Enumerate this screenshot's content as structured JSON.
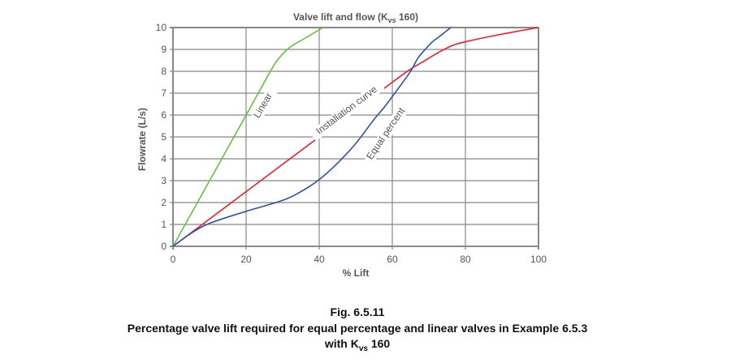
{
  "chart_data": {
    "type": "line",
    "title": "Valve lift and flow (K",
    "title_sub": "vs",
    "title_tail": " 160)",
    "xlabel": "% Lift",
    "ylabel": "Flowrate (L/s)",
    "xlim": [
      0,
      100
    ],
    "ylim": [
      0,
      10
    ],
    "xticks": [
      0,
      20,
      40,
      60,
      80,
      100
    ],
    "yticks": [
      0,
      1,
      2,
      3,
      4,
      5,
      6,
      7,
      8,
      9,
      10
    ],
    "grid": true,
    "series": [
      {
        "name": "Linear",
        "color": "#6abf3f",
        "x": [
          0,
          10,
          20,
          27,
          29,
          32,
          36,
          41
        ],
        "y": [
          0,
          3,
          6,
          8.1,
          8.6,
          9.1,
          9.5,
          10
        ]
      },
      {
        "name": "Installation curve",
        "color": "#e8202a",
        "x": [
          0,
          40,
          60,
          65,
          68,
          72,
          76,
          80,
          90,
          100
        ],
        "y": [
          0,
          5,
          7.5,
          8.1,
          8.4,
          8.8,
          9.15,
          9.35,
          9.7,
          10
        ]
      },
      {
        "name": "Equal percent",
        "color": "#2f4fa8",
        "x": [
          0,
          5,
          10,
          20,
          30,
          35,
          40,
          45,
          50,
          55,
          58,
          62,
          65,
          67,
          69,
          71,
          73,
          76
        ],
        "y": [
          0,
          0.6,
          1.05,
          1.6,
          2.1,
          2.5,
          3.05,
          3.8,
          4.7,
          5.8,
          6.4,
          7.3,
          8.0,
          8.6,
          9.0,
          9.35,
          9.6,
          10
        ]
      }
    ]
  },
  "caption": {
    "fig": "Fig. 6.5.11",
    "line1": "Percentage valve lift required for equal percentage and linear valves in Example 6.5.3",
    "line2_pre": "with K",
    "line2_sub": "vs",
    "line2_post": " 160"
  }
}
